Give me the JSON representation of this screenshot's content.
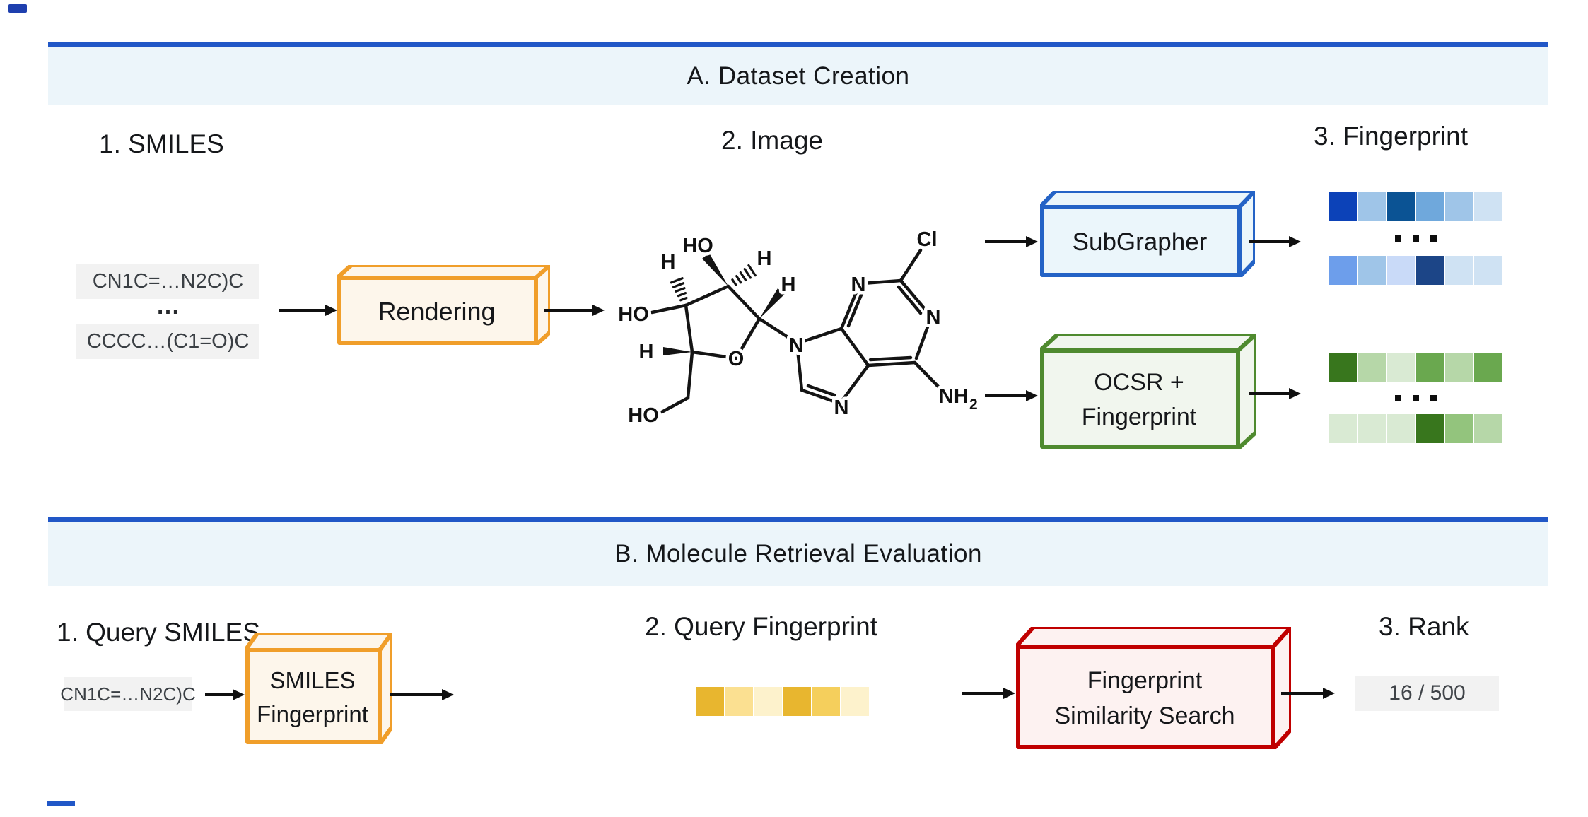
{
  "sections": {
    "a": {
      "title": "A. Dataset Creation",
      "step1_label": "1. SMILES",
      "smiles_top": "CN1C=…N2C)C",
      "smiles_ellipsis": "…",
      "smiles_bottom": "CCCC…(C1=O)C",
      "rendering_box": "Rendering",
      "step2_label": "2. Image",
      "subgrapher_box": "SubGrapher",
      "ocsr_box_line1": "OCSR +",
      "ocsr_box_line2": "Fingerprint",
      "step3_label": "3. Fingerprint"
    },
    "b": {
      "title": "B. Molecule Retrieval Evaluation",
      "step1_label": "1. Query SMILES",
      "query_smiles": "CN1C=…N2C)C",
      "smiles_fp_line1": "SMILES",
      "smiles_fp_line2": "Fingerprint",
      "step2_label": "2. Query Fingerprint",
      "search_box_line1": "Fingerprint",
      "search_box_line2": "Similarity Search",
      "step3_label": "3. Rank",
      "rank_value": "16 / 500"
    }
  },
  "molecule": {
    "labels": {
      "ho_top": "HO",
      "h_c3": "H",
      "h_c2": "H",
      "ho_left": "HO",
      "h_c4": "H",
      "o_ring": "O",
      "h_c1": "H",
      "ho_bottom": "HO",
      "n9": "N",
      "n7": "N",
      "n3": "N",
      "n1": "N",
      "cl": "Cl",
      "nh": "NH",
      "nh_sub": "2"
    }
  },
  "fingerprints": {
    "subgrapher_row1": [
      "#0c42b8",
      "#9fc5e8",
      "#0b5394",
      "#6fa8dc",
      "#9fc5e8",
      "#cfe2f3"
    ],
    "subgrapher_row2": [
      "#6d9eeb",
      "#9fc5e8",
      "#c9daf8",
      "#1c4587",
      "#cfe2f3",
      "#cfe2f3"
    ],
    "ocsr_row1": [
      "#38761d",
      "#b6d7a8",
      "#d9ead3",
      "#6aa84f",
      "#b6d7a8",
      "#6aa84f"
    ],
    "ocsr_row2": [
      "#d9ead3",
      "#d9ead3",
      "#d9ead3",
      "#38761d",
      "#93c47d",
      "#b6d7a8"
    ],
    "query": [
      "#e8b62f",
      "#fbe091",
      "#fdf2cc",
      "#e8b62f",
      "#f5cf5c",
      "#fdf2cc"
    ]
  },
  "colors": {
    "section_rule_blue": "#2157c7",
    "section_band_blue": "#ecf5fa",
    "rendering_box_orange": "#f09e2a",
    "subgrapher_box_blue": "#2463c6",
    "ocsr_box_green": "#4f8a2f",
    "search_box_red": "#c00000",
    "chip_gray": "#f2f2f2"
  }
}
